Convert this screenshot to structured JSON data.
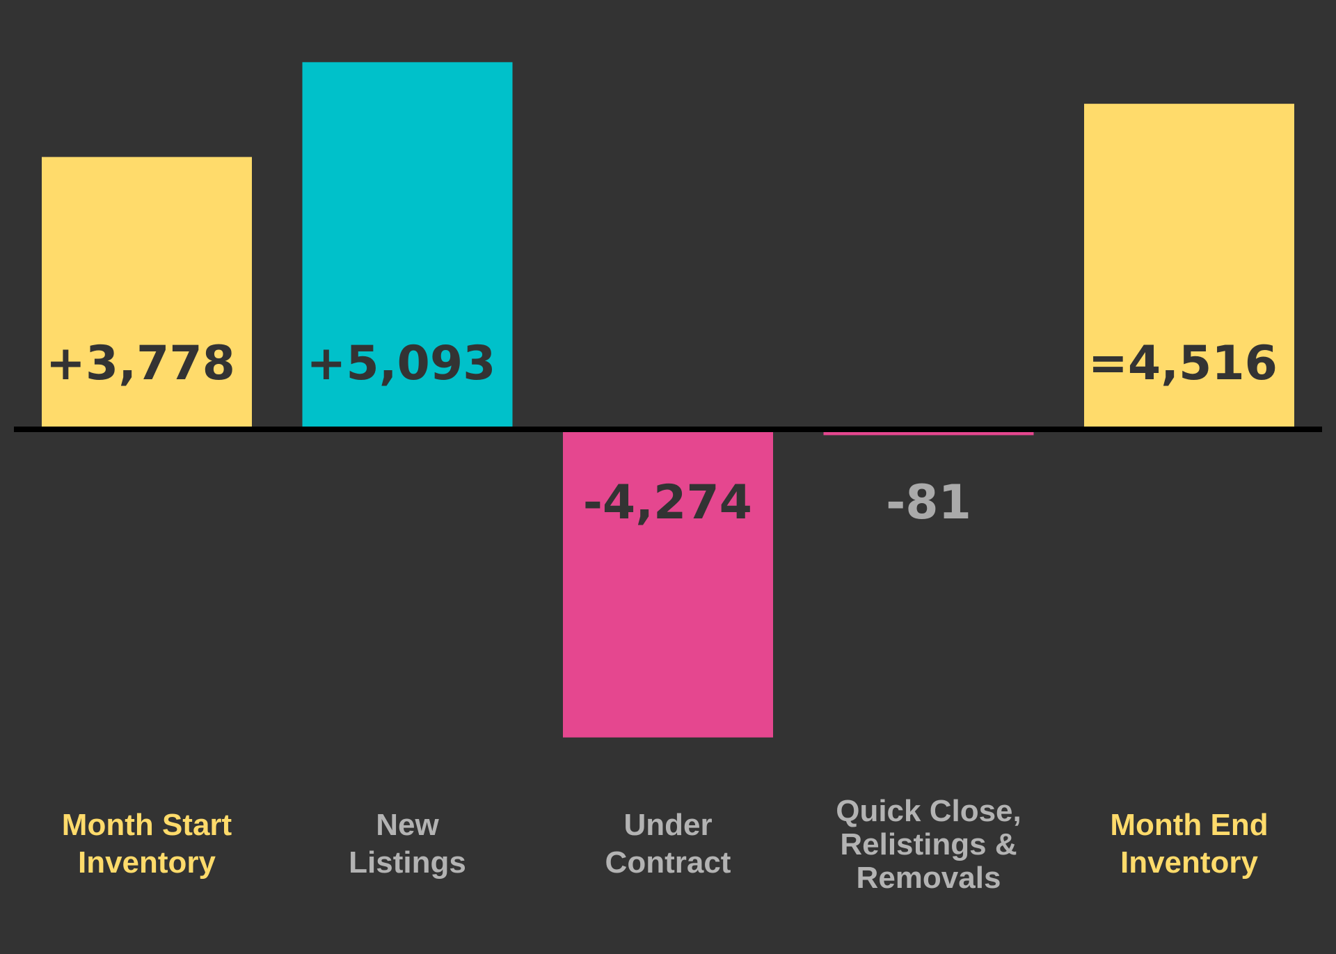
{
  "chart_data": {
    "type": "bar",
    "subtype": "waterfall",
    "categories": [
      "Month Start Inventory",
      "New Listings",
      "Under Contract",
      "Quick Close, Relistings & Removals",
      "Month End Inventory"
    ],
    "category_label_lines": [
      [
        "Month Start",
        "Inventory"
      ],
      [
        "New",
        "Listings"
      ],
      [
        "Under",
        "Contract"
      ],
      [
        "Quick Close,",
        "Relistings &",
        "Removals"
      ],
      [
        "Month End",
        "Inventory"
      ]
    ],
    "values": [
      3778,
      5093,
      -4274,
      -81,
      4516
    ],
    "data_labels": [
      "+3,778",
      "+5,093",
      "-4,274",
      "-81",
      "=4,516"
    ],
    "bar_colors": [
      "#FFDB6B",
      "#00C1CA",
      "#E5478F",
      "#E5478F",
      "#FFDB6B"
    ],
    "label_colors": [
      "#FFDB6B",
      "#B3B3B3",
      "#B3B3B3",
      "#B3B3B3",
      "#FFDB6B"
    ],
    "value_label_colors": [
      "#333333",
      "#333333",
      "#333333",
      "#AAAAAA",
      "#333333"
    ],
    "value_label_placement": [
      "inside",
      "inside",
      "inside",
      "outside",
      "inside"
    ],
    "baseline": 0,
    "background": "#333333",
    "baseline_color": "#000000",
    "grid": false,
    "legend": "none",
    "title": "",
    "xlabel": "",
    "ylabel": ""
  }
}
